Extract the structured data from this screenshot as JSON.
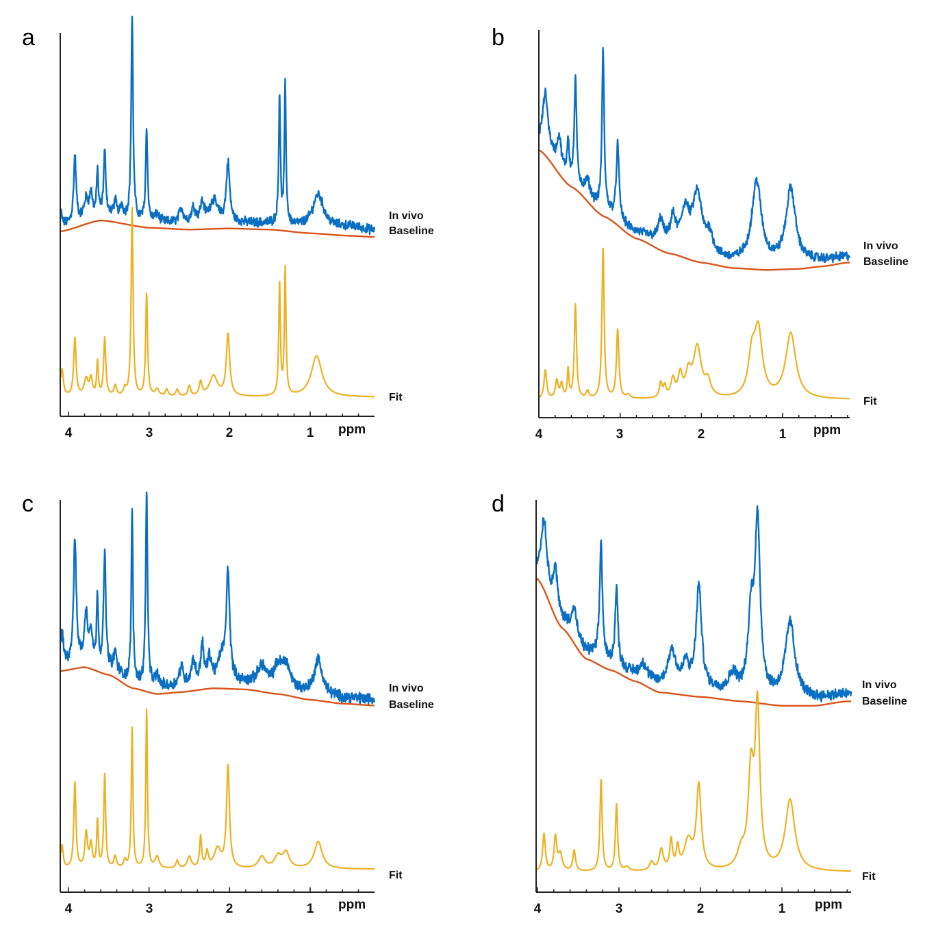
{
  "colors": {
    "in_vivo": "#0a6fc2",
    "baseline": "#d9541a",
    "fit": "#edb120",
    "axis": "#222222"
  },
  "chart_data": [
    {
      "panel": "a",
      "type": "line",
      "xlabel": "ppm",
      "xlim": [
        4.1,
        0.2
      ],
      "xticks": [
        "4",
        "3",
        "2",
        "1"
      ],
      "x_reversed": true,
      "series": [
        {
          "name": "In vivo",
          "label": "In vivo",
          "offset": 0.52,
          "noise": 0.01,
          "peaks": [
            [
              4.1,
              0.05,
              0.015
            ],
            [
              3.92,
              0.18,
              0.018
            ],
            [
              3.78,
              0.05,
              0.03
            ],
            [
              3.72,
              0.06,
              0.02
            ],
            [
              3.64,
              0.12,
              0.012
            ],
            [
              3.55,
              0.17,
              0.016
            ],
            [
              3.42,
              0.04,
              0.02
            ],
            [
              3.34,
              0.03,
              0.02
            ],
            [
              3.21,
              0.55,
              0.014
            ],
            [
              3.03,
              0.25,
              0.014
            ],
            [
              2.9,
              0.02,
              0.03
            ],
            [
              2.6,
              0.04,
              0.03
            ],
            [
              2.45,
              0.04,
              0.03
            ],
            [
              2.34,
              0.05,
              0.03
            ],
            [
              2.2,
              0.06,
              0.06
            ],
            [
              2.02,
              0.16,
              0.025
            ],
            [
              1.38,
              0.35,
              0.012
            ],
            [
              1.31,
              0.37,
              0.012
            ],
            [
              0.9,
              0.09,
              0.08
            ],
            [
              0.5,
              0.01,
              0.2
            ]
          ]
        },
        {
          "name": "Baseline",
          "label": "Baseline",
          "curve": [
            [
              4.1,
              0.5
            ],
            [
              3.6,
              0.53
            ],
            [
              3.0,
              0.51
            ],
            [
              2.5,
              0.505
            ],
            [
              2.0,
              0.508
            ],
            [
              1.5,
              0.505
            ],
            [
              1.0,
              0.495
            ],
            [
              0.5,
              0.488
            ],
            [
              0.2,
              0.485
            ]
          ]
        },
        {
          "name": "Fit",
          "label": "Fit",
          "offset": 0.05,
          "noise": 0.0,
          "peaks": [
            [
              4.08,
              0.08,
              0.02
            ],
            [
              3.92,
              0.17,
              0.018
            ],
            [
              3.78,
              0.05,
              0.03
            ],
            [
              3.72,
              0.05,
              0.02
            ],
            [
              3.64,
              0.1,
              0.012
            ],
            [
              3.55,
              0.17,
              0.016
            ],
            [
              3.42,
              0.03,
              0.02
            ],
            [
              3.3,
              0.02,
              0.02
            ],
            [
              3.21,
              0.55,
              0.014
            ],
            [
              3.03,
              0.3,
              0.014
            ],
            [
              2.9,
              0.02,
              0.03
            ],
            [
              2.78,
              0.02,
              0.02
            ],
            [
              2.65,
              0.02,
              0.02
            ],
            [
              2.5,
              0.03,
              0.02
            ],
            [
              2.36,
              0.04,
              0.02
            ],
            [
              2.2,
              0.06,
              0.06
            ],
            [
              2.02,
              0.18,
              0.025
            ],
            [
              1.38,
              0.33,
              0.012
            ],
            [
              1.31,
              0.37,
              0.012
            ],
            [
              0.92,
              0.12,
              0.08
            ]
          ]
        }
      ]
    },
    {
      "panel": "b",
      "type": "line",
      "xlabel": "ppm",
      "xlim": [
        4.0,
        0.2
      ],
      "xticks": [
        "4",
        "3",
        "2",
        "1"
      ],
      "x_reversed": true,
      "series": [
        {
          "name": "In vivo",
          "label": "In vivo",
          "offset": 0.0,
          "noise": 0.01,
          "peaks": [
            [
              3.92,
              0.15,
              0.04
            ],
            [
              3.75,
              0.08,
              0.03
            ],
            [
              3.64,
              0.1,
              0.015
            ],
            [
              3.55,
              0.28,
              0.016
            ],
            [
              3.4,
              0.04,
              0.03
            ],
            [
              3.21,
              0.43,
              0.016
            ],
            [
              3.03,
              0.2,
              0.02
            ],
            [
              2.5,
              0.06,
              0.04
            ],
            [
              2.35,
              0.07,
              0.04
            ],
            [
              2.2,
              0.1,
              0.06
            ],
            [
              2.05,
              0.16,
              0.07
            ],
            [
              1.9,
              0.05,
              0.05
            ],
            [
              1.32,
              0.22,
              0.07
            ],
            [
              0.9,
              0.2,
              0.07
            ]
          ]
        },
        {
          "name": "Baseline",
          "label": "Baseline",
          "curve": [
            [
              4.0,
              0.78
            ],
            [
              3.6,
              0.68
            ],
            [
              3.2,
              0.6
            ],
            [
              2.8,
              0.54
            ],
            [
              2.4,
              0.5
            ],
            [
              2.0,
              0.475
            ],
            [
              1.6,
              0.46
            ],
            [
              1.2,
              0.455
            ],
            [
              0.8,
              0.458
            ],
            [
              0.5,
              0.465
            ],
            [
              0.2,
              0.475
            ]
          ]
        },
        {
          "name": "Fit",
          "label": "Fit",
          "offset": 0.04,
          "noise": 0.0,
          "peaks": [
            [
              3.92,
              0.08,
              0.02
            ],
            [
              3.78,
              0.05,
              0.02
            ],
            [
              3.72,
              0.04,
              0.02
            ],
            [
              3.64,
              0.08,
              0.012
            ],
            [
              3.55,
              0.26,
              0.016
            ],
            [
              3.4,
              0.02,
              0.02
            ],
            [
              3.21,
              0.42,
              0.016
            ],
            [
              3.03,
              0.19,
              0.018
            ],
            [
              2.9,
              0.01,
              0.03
            ],
            [
              2.5,
              0.04,
              0.02
            ],
            [
              2.45,
              0.03,
              0.02
            ],
            [
              2.35,
              0.05,
              0.03
            ],
            [
              2.26,
              0.06,
              0.03
            ],
            [
              2.16,
              0.06,
              0.04
            ],
            [
              2.05,
              0.14,
              0.06
            ],
            [
              1.92,
              0.04,
              0.04
            ],
            [
              1.38,
              0.1,
              0.05
            ],
            [
              1.3,
              0.18,
              0.06
            ],
            [
              0.9,
              0.18,
              0.075
            ]
          ]
        }
      ]
    },
    {
      "panel": "c",
      "type": "line",
      "xlabel": "ppm",
      "xlim": [
        4.1,
        0.2
      ],
      "xticks": [
        "4",
        "3",
        "2",
        "1"
      ],
      "x_reversed": true,
      "series": [
        {
          "name": "In vivo",
          "label": "In vivo",
          "offset": 0.0,
          "noise": 0.012,
          "peaks": [
            [
              4.08,
              0.08,
              0.02
            ],
            [
              3.92,
              0.32,
              0.02
            ],
            [
              3.78,
              0.12,
              0.025
            ],
            [
              3.72,
              0.08,
              0.02
            ],
            [
              3.64,
              0.18,
              0.012
            ],
            [
              3.55,
              0.3,
              0.016
            ],
            [
              3.42,
              0.05,
              0.02
            ],
            [
              3.21,
              0.45,
              0.012
            ],
            [
              3.03,
              0.5,
              0.014
            ],
            [
              2.9,
              0.03,
              0.03
            ],
            [
              2.6,
              0.05,
              0.03
            ],
            [
              2.45,
              0.06,
              0.03
            ],
            [
              2.34,
              0.1,
              0.02
            ],
            [
              2.25,
              0.06,
              0.03
            ],
            [
              2.1,
              0.06,
              0.05
            ],
            [
              2.02,
              0.28,
              0.025
            ],
            [
              1.6,
              0.05,
              0.06
            ],
            [
              1.4,
              0.05,
              0.06
            ],
            [
              1.3,
              0.06,
              0.06
            ],
            [
              0.9,
              0.09,
              0.06
            ]
          ]
        },
        {
          "name": "Baseline",
          "label": "Baseline",
          "curve": [
            [
              4.1,
              0.5
            ],
            [
              3.8,
              0.51
            ],
            [
              3.5,
              0.49
            ],
            [
              3.2,
              0.455
            ],
            [
              2.9,
              0.44
            ],
            [
              2.6,
              0.445
            ],
            [
              2.2,
              0.455
            ],
            [
              1.8,
              0.452
            ],
            [
              1.4,
              0.44
            ],
            [
              1.0,
              0.425
            ],
            [
              0.6,
              0.415
            ],
            [
              0.2,
              0.41
            ]
          ]
        },
        {
          "name": "Fit",
          "label": "Fit",
          "offset": 0.05,
          "noise": 0.0,
          "peaks": [
            [
              4.08,
              0.06,
              0.018
            ],
            [
              3.92,
              0.22,
              0.016
            ],
            [
              3.78,
              0.09,
              0.02
            ],
            [
              3.72,
              0.06,
              0.02
            ],
            [
              3.64,
              0.12,
              0.012
            ],
            [
              3.55,
              0.24,
              0.014
            ],
            [
              3.42,
              0.03,
              0.02
            ],
            [
              3.3,
              0.02,
              0.02
            ],
            [
              3.21,
              0.36,
              0.012
            ],
            [
              3.03,
              0.41,
              0.012
            ],
            [
              2.9,
              0.03,
              0.03
            ],
            [
              2.65,
              0.02,
              0.02
            ],
            [
              2.5,
              0.03,
              0.03
            ],
            [
              2.36,
              0.08,
              0.015
            ],
            [
              2.28,
              0.04,
              0.02
            ],
            [
              2.15,
              0.05,
              0.05
            ],
            [
              2.02,
              0.26,
              0.022
            ],
            [
              1.6,
              0.03,
              0.05
            ],
            [
              1.4,
              0.03,
              0.05
            ],
            [
              1.3,
              0.04,
              0.05
            ],
            [
              0.9,
              0.07,
              0.06
            ]
          ]
        }
      ]
    },
    {
      "panel": "d",
      "type": "line",
      "xlabel": "ppm",
      "xlim": [
        4.0,
        0.2
      ],
      "xticks": [
        "4",
        "3",
        "2",
        "1"
      ],
      "x_reversed": true,
      "series": [
        {
          "name": "In vivo",
          "label": "In vivo",
          "offset": 0.0,
          "noise": 0.01,
          "peaks": [
            [
              3.92,
              0.14,
              0.04
            ],
            [
              3.78,
              0.09,
              0.03
            ],
            [
              3.55,
              0.06,
              0.04
            ],
            [
              3.22,
              0.26,
              0.02
            ],
            [
              3.03,
              0.17,
              0.02
            ],
            [
              2.7,
              0.03,
              0.05
            ],
            [
              2.35,
              0.08,
              0.06
            ],
            [
              2.18,
              0.05,
              0.04
            ],
            [
              2.02,
              0.23,
              0.04
            ],
            [
              1.6,
              0.04,
              0.06
            ],
            [
              1.38,
              0.16,
              0.04
            ],
            [
              1.3,
              0.38,
              0.04
            ],
            [
              0.9,
              0.17,
              0.07
            ]
          ]
        },
        {
          "name": "Baseline",
          "label": "Baseline",
          "curve": [
            [
              4.0,
              0.73
            ],
            [
              3.7,
              0.62
            ],
            [
              3.4,
              0.55
            ],
            [
              3.1,
              0.525
            ],
            [
              2.8,
              0.5
            ],
            [
              2.5,
              0.475
            ],
            [
              2.0,
              0.465
            ],
            [
              1.5,
              0.455
            ],
            [
              1.0,
              0.445
            ],
            [
              0.6,
              0.445
            ],
            [
              0.2,
              0.455
            ]
          ]
        },
        {
          "name": "Fit",
          "label": "Fit",
          "offset": 0.04,
          "noise": 0.0,
          "peaks": [
            [
              3.92,
              0.09,
              0.02
            ],
            [
              3.78,
              0.08,
              0.02
            ],
            [
              3.72,
              0.04,
              0.03
            ],
            [
              3.55,
              0.05,
              0.02
            ],
            [
              3.22,
              0.22,
              0.016
            ],
            [
              3.03,
              0.16,
              0.016
            ],
            [
              2.9,
              0.01,
              0.03
            ],
            [
              2.6,
              0.02,
              0.03
            ],
            [
              2.48,
              0.05,
              0.03
            ],
            [
              2.36,
              0.07,
              0.02
            ],
            [
              2.28,
              0.05,
              0.02
            ],
            [
              2.15,
              0.07,
              0.06
            ],
            [
              2.02,
              0.2,
              0.035
            ],
            [
              1.5,
              0.04,
              0.06
            ],
            [
              1.38,
              0.22,
              0.04
            ],
            [
              1.3,
              0.38,
              0.035
            ],
            [
              0.9,
              0.17,
              0.07
            ]
          ]
        }
      ]
    }
  ]
}
